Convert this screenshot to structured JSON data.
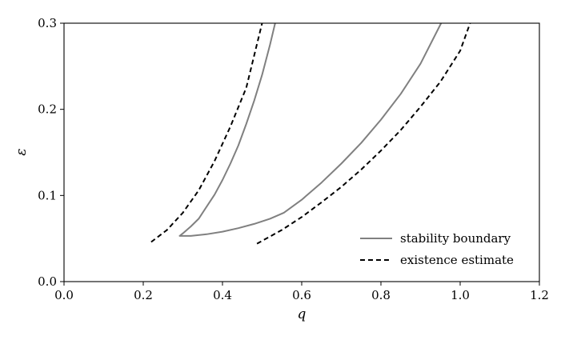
{
  "chart_data": {
    "type": "line",
    "title": "",
    "xlabel": "q",
    "ylabel": "ε",
    "xlim": [
      0.0,
      1.2
    ],
    "ylim": [
      0.0,
      0.3
    ],
    "xticks": [
      "0.0",
      "0.2",
      "0.4",
      "0.6",
      "0.8",
      "1.0",
      "1.2"
    ],
    "yticks": [
      "0.0",
      "0.1",
      "0.2",
      "0.3"
    ],
    "grid": false,
    "legend_position": "bottom-right",
    "series": [
      {
        "name": "stability boundary",
        "style": "solid",
        "color": "#808080",
        "x": [
          0.533,
          0.52,
          0.5,
          0.48,
          0.46,
          0.44,
          0.42,
          0.4,
          0.38,
          0.36,
          0.34,
          0.32,
          0.31,
          0.3,
          0.292,
          0.32,
          0.36,
          0.4,
          0.44,
          0.48,
          0.52,
          0.555,
          0.6,
          0.65,
          0.7,
          0.75,
          0.8,
          0.85,
          0.9,
          0.952
        ],
        "y": [
          0.3,
          0.275,
          0.24,
          0.21,
          0.183,
          0.158,
          0.137,
          0.118,
          0.101,
          0.087,
          0.073,
          0.064,
          0.06,
          0.056,
          0.053,
          0.053,
          0.055,
          0.058,
          0.062,
          0.067,
          0.073,
          0.08,
          0.095,
          0.115,
          0.137,
          0.161,
          0.188,
          0.218,
          0.253,
          0.3
        ]
      },
      {
        "name": "existence estimate",
        "style": "dashed",
        "color": "#000000",
        "x": [
          0.22,
          0.26,
          0.3,
          0.34,
          0.38,
          0.42,
          0.46,
          0.5
        ],
        "y": [
          0.046,
          0.06,
          0.08,
          0.106,
          0.14,
          0.18,
          0.225,
          0.3
        ],
        "x2": [
          0.487,
          0.55,
          0.6,
          0.65,
          0.7,
          0.75,
          0.8,
          0.85,
          0.9,
          0.95,
          1.0,
          1.025
        ],
        "y2": [
          0.044,
          0.06,
          0.075,
          0.092,
          0.11,
          0.13,
          0.152,
          0.176,
          0.203,
          0.232,
          0.268,
          0.3
        ]
      }
    ]
  },
  "legend": {
    "items": [
      {
        "label": "stability boundary",
        "color": "#808080",
        "style": "solid"
      },
      {
        "label": "existence estimate",
        "color": "#000000",
        "style": "dashed"
      }
    ]
  }
}
